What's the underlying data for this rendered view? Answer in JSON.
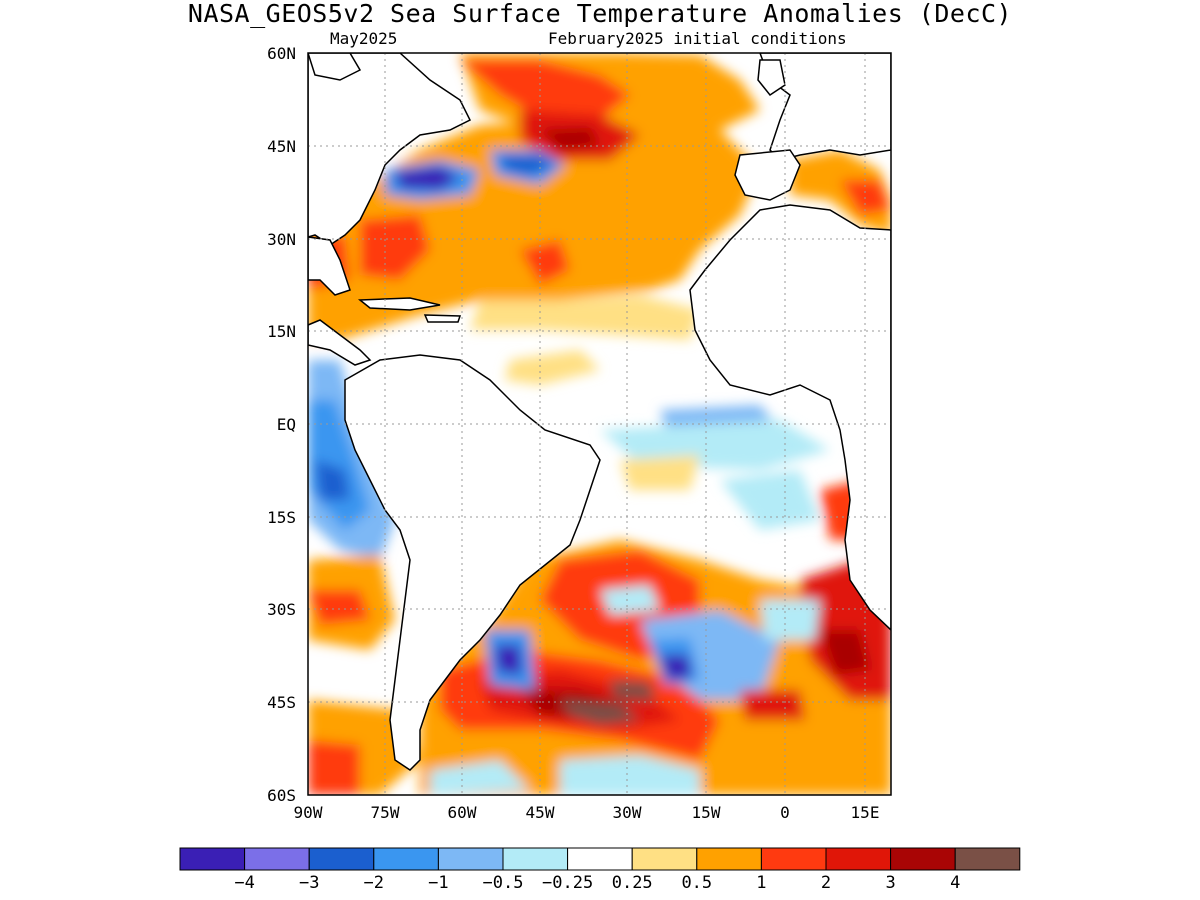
{
  "title": "NASA_GEOS5v2 Sea Surface Temperature Anomalies (DecC)",
  "subtitle_left": "May2025",
  "subtitle_right": "February2025 initial conditions",
  "lat_labels": [
    "60N",
    "45N",
    "30N",
    "15N",
    "EQ",
    "15S",
    "30S",
    "45S",
    "60S"
  ],
  "lon_labels": [
    "90W",
    "75W",
    "60W",
    "45W",
    "30W",
    "15W",
    "0",
    "15E"
  ],
  "colors": {
    "land": "#ffffff",
    "coast": "#000000",
    "grid": "#999999",
    "anomaly_high": "#8a1a10"
  },
  "colorbar": {
    "colors": [
      "#3a1fb5",
      "#7b6fe8",
      "#1b5fcf",
      "#3a96f0",
      "#7db8f5",
      "#b3ebf7",
      "#ffffff",
      "#ffe084",
      "#ffa100",
      "#ff3a10",
      "#e01608",
      "#a90505",
      "#7a5046"
    ],
    "labels": [
      "−4",
      "−3",
      "−2",
      "−1",
      "−0.5",
      "−0.25",
      "0.25",
      "0.5",
      "1",
      "2",
      "3",
      "4"
    ]
  }
}
